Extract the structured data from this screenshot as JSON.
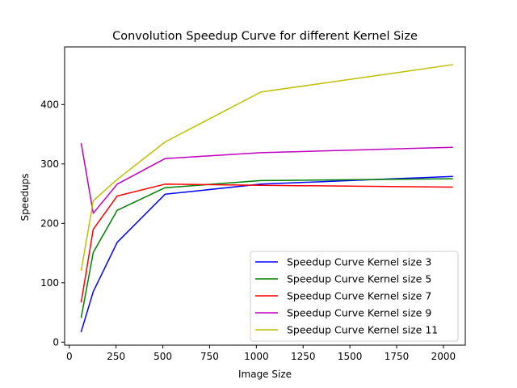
{
  "chart_data": {
    "type": "line",
    "title": "Convolution Speedup Curve for different Kernel Size",
    "xlabel": "Image Size",
    "ylabel": "Speedups",
    "xlim": [
      -25,
      2117
    ],
    "ylim": [
      -5,
      497
    ],
    "xticks": [
      0,
      250,
      500,
      750,
      1000,
      1250,
      1500,
      1750,
      2000
    ],
    "xtick_labels": [
      "0",
      "250",
      "500",
      "750",
      "1000",
      "1250",
      "1500",
      "1750",
      "2000"
    ],
    "yticks": [
      0,
      100,
      200,
      300,
      400
    ],
    "ytick_labels": [
      "0",
      "100",
      "200",
      "300",
      "400"
    ],
    "grid": false,
    "legend_position": "lower-right",
    "x": [
      64,
      128,
      256,
      512,
      1024,
      2048
    ],
    "series": [
      {
        "name": "Speedup Curve Kernel size 3",
        "color": "#0000ff",
        "values": [
          18,
          85,
          168,
          249,
          266,
          279
        ]
      },
      {
        "name": "Speedup Curve Kernel size 5",
        "color": "#008000",
        "values": [
          42,
          151,
          222,
          260,
          272,
          275
        ]
      },
      {
        "name": "Speedup Curve Kernel size 7",
        "color": "#ff0000",
        "values": [
          68,
          190,
          246,
          266,
          264,
          261
        ]
      },
      {
        "name": "Speedup Curve Kernel size 9",
        "color": "#bf00bf",
        "values": [
          334,
          217,
          266,
          309,
          319,
          328
        ]
      },
      {
        "name": "Speedup Curve Kernel size 11",
        "color": "#bfbf00",
        "values": [
          121,
          238,
          274,
          337,
          421,
          467
        ]
      }
    ]
  }
}
